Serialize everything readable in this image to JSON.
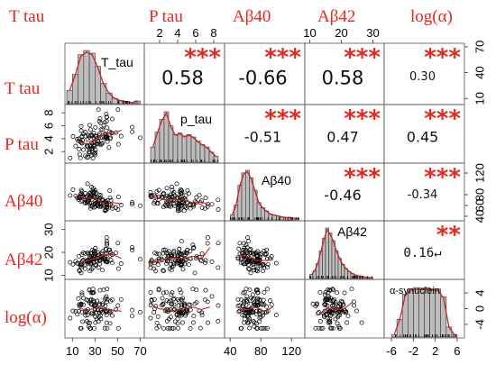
{
  "variables": [
    "T tau",
    "P tau",
    "Aβ40",
    "Aβ42",
    "log(α)"
  ],
  "diagonal_labels": [
    "T_tau",
    "p_tau",
    "Aβ40",
    "Aβ42",
    "α-synuclein"
  ],
  "colors": {
    "labels": "#e8261c",
    "stars": "#e8261c",
    "smoother": "#cc2222",
    "density": "#cc2222",
    "histogram_fill": "#bdbdbd",
    "points": "#000000"
  },
  "chart_data": {
    "type": "scatter-matrix",
    "variables": [
      "T tau",
      "P tau",
      "Aβ40",
      "Aβ42",
      "log(α)"
    ],
    "ranges": {
      "T tau": [
        5,
        72
      ],
      "P tau": [
        0.5,
        9
      ],
      "Aβ40": [
        35,
        135
      ],
      "Aβ42": [
        9,
        33
      ],
      "log(α)": [
        -7,
        7
      ]
    },
    "ticks": {
      "top": {
        "P tau": [
          "2",
          "4",
          "6",
          "8"
        ],
        "Aβ42": [
          "10",
          "20",
          "30"
        ]
      },
      "bottom": {
        "T tau": [
          "10",
          "30",
          "50",
          "70"
        ],
        "Aβ40": [
          "40",
          "80",
          "120"
        ],
        "log(α)": [
          "-6",
          "-2",
          "2",
          "6"
        ]
      },
      "left": {
        "P tau": [
          "2",
          "4",
          "6",
          "8"
        ],
        "Aβ42": [
          "10",
          "20",
          "30"
        ]
      },
      "right": {
        "T tau": [
          "10",
          "40",
          "70"
        ],
        "Aβ40": [
          "40",
          "60",
          "80",
          "120"
        ],
        "log(α)": [
          "-4",
          "0",
          "4"
        ]
      }
    },
    "correlations": [
      {
        "row": 0,
        "col": 1,
        "r": "0.58",
        "stars": "***",
        "size": "large"
      },
      {
        "row": 0,
        "col": 2,
        "r": "-0.66",
        "stars": "***",
        "size": "large"
      },
      {
        "row": 0,
        "col": 3,
        "r": "0.58",
        "stars": "***",
        "size": "large"
      },
      {
        "row": 0,
        "col": 4,
        "r": "0.30",
        "stars": "***",
        "size": "small"
      },
      {
        "row": 1,
        "col": 2,
        "r": "-0.51",
        "stars": "***",
        "size": "medium"
      },
      {
        "row": 1,
        "col": 3,
        "r": "0.47",
        "stars": "***",
        "size": "medium"
      },
      {
        "row": 1,
        "col": 4,
        "r": "0.45",
        "stars": "***",
        "size": "medium"
      },
      {
        "row": 2,
        "col": 3,
        "r": "-0.46",
        "stars": "***",
        "size": "medium"
      },
      {
        "row": 2,
        "col": 4,
        "r": "-0.34",
        "stars": "***",
        "size": "small"
      },
      {
        "row": 3,
        "col": 4,
        "r": "0.16↵",
        "stars": "**",
        "size": "hand"
      }
    ],
    "histograms": {
      "T tau": {
        "edges": [
          5,
          10,
          15,
          20,
          25,
          30,
          35,
          40,
          45,
          50,
          55,
          60,
          65,
          70
        ],
        "density": [
          0.25,
          0.55,
          0.92,
          1.0,
          0.95,
          0.7,
          0.38,
          0.2,
          0.1,
          0.06,
          0.04,
          0.02,
          0.05
        ]
      },
      "P tau": {
        "edges": [
          1,
          1.5,
          2,
          2.5,
          3,
          3.5,
          4,
          4.5,
          5,
          5.5,
          6,
          6.5,
          7,
          7.5,
          8,
          8.5
        ],
        "density": [
          0.3,
          0.6,
          0.85,
          1.0,
          0.72,
          0.55,
          0.58,
          0.52,
          0.55,
          0.5,
          0.42,
          0.35,
          0.3,
          0.2,
          0.12
        ]
      },
      "Aβ40": {
        "edges": [
          40,
          45,
          50,
          55,
          60,
          65,
          70,
          75,
          80,
          85,
          90,
          95,
          100,
          105,
          110,
          115,
          120,
          125,
          130
        ],
        "density": [
          0.1,
          0.3,
          0.7,
          0.95,
          1.0,
          0.85,
          0.6,
          0.35,
          0.25,
          0.18,
          0.12,
          0.1,
          0.08,
          0.06,
          0.05,
          0.05,
          0.04,
          0.03
        ]
      },
      "Aβ42": {
        "edges": [
          10,
          11,
          12,
          13,
          14,
          15,
          16,
          17,
          18,
          19,
          20,
          21,
          22,
          23,
          24,
          25,
          26,
          27,
          28,
          29,
          30
        ],
        "density": [
          0.08,
          0.15,
          0.3,
          0.55,
          0.8,
          1.0,
          0.9,
          0.75,
          0.55,
          0.4,
          0.28,
          0.2,
          0.14,
          0.1,
          0.07,
          0.05,
          0.04,
          0.03,
          0.02,
          0.02
        ]
      },
      "log(α)": {
        "edges": [
          -6,
          -5,
          -4,
          -3,
          -2,
          -1,
          0,
          1,
          2,
          3,
          4,
          5,
          6
        ],
        "density": [
          0.05,
          0.35,
          0.85,
          0.95,
          0.98,
          0.97,
          0.98,
          0.96,
          0.95,
          0.8,
          0.2,
          0.05
        ]
      }
    },
    "scatter_points_per_panel": 110
  }
}
